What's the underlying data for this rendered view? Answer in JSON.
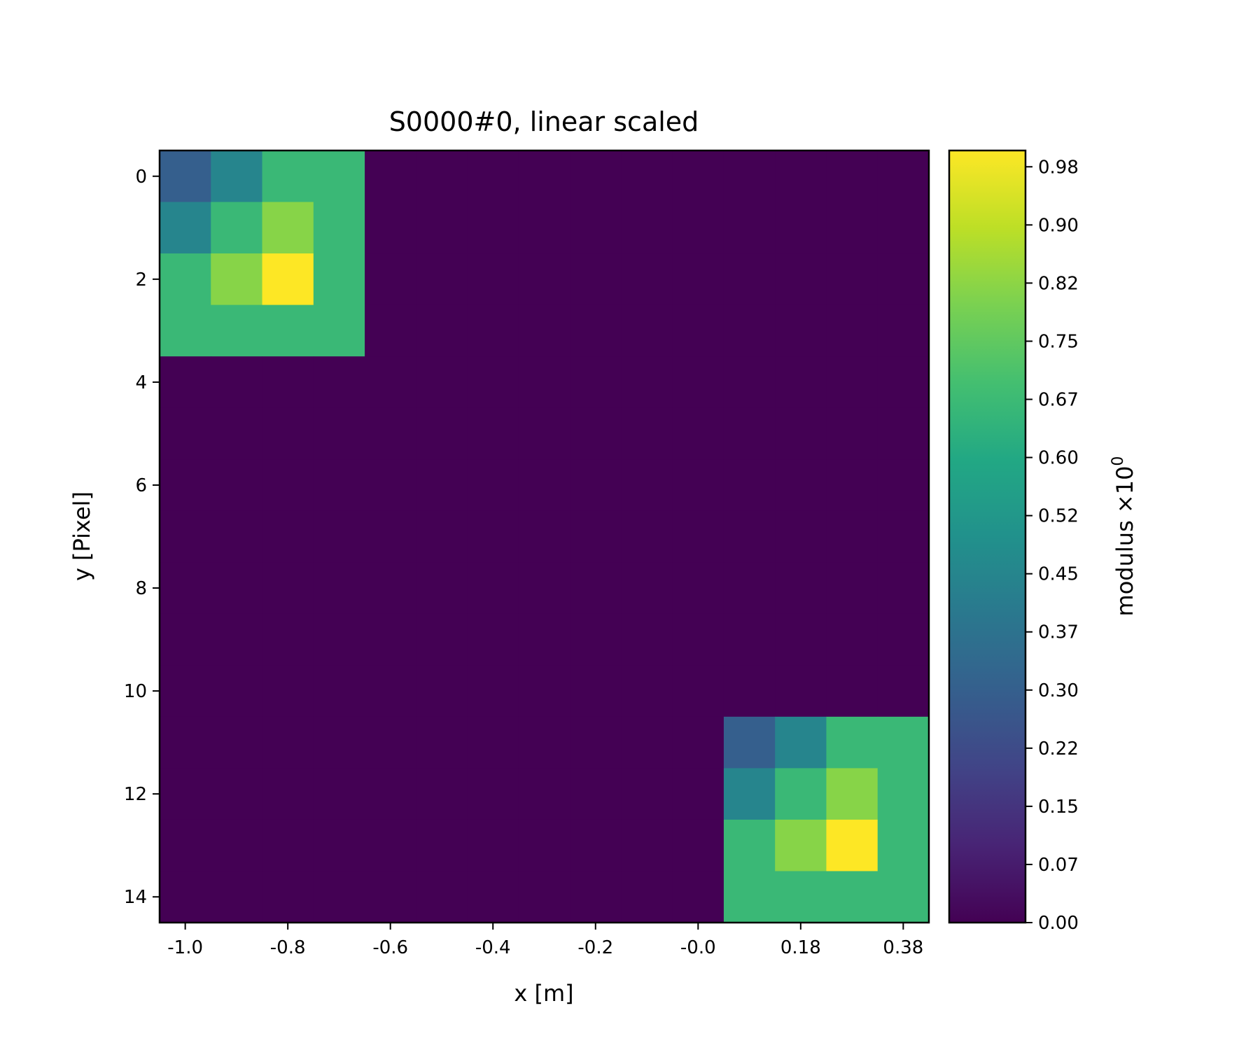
{
  "chart_data": {
    "type": "heatmap",
    "title": "S0000#0, linear scaled",
    "xlabel": "x [m]",
    "ylabel": "y [Pixel]",
    "colorbar_label": "modulus ×10",
    "colorbar_label_exponent": "0",
    "colormap": "viridis",
    "vlim": [
      0,
      1.0
    ],
    "rows": 15,
    "cols": 15,
    "background_value": 0,
    "blocks": [
      {
        "row_start": 0,
        "col_start": 0,
        "values": [
          [
            0.3,
            0.45,
            0.67,
            0.67
          ],
          [
            0.45,
            0.67,
            0.82,
            0.67
          ],
          [
            0.67,
            0.82,
            1.0,
            0.67
          ],
          [
            0.67,
            0.67,
            0.67,
            0.67
          ]
        ]
      },
      {
        "row_start": 11,
        "col_start": 11,
        "values": [
          [
            0.3,
            0.45,
            0.67,
            0.67
          ],
          [
            0.45,
            0.67,
            0.82,
            0.67
          ],
          [
            0.67,
            0.82,
            1.0,
            0.67
          ],
          [
            0.67,
            0.67,
            0.67,
            0.67
          ]
        ]
      }
    ],
    "x_ticks": [
      {
        "col": 0,
        "label": "-1.0"
      },
      {
        "col": 2,
        "label": "-0.8"
      },
      {
        "col": 4,
        "label": "-0.6"
      },
      {
        "col": 6,
        "label": "-0.4"
      },
      {
        "col": 8,
        "label": "-0.2"
      },
      {
        "col": 10,
        "label": "-0.0"
      },
      {
        "col": 12,
        "label": "0.18"
      },
      {
        "col": 14,
        "label": "0.38"
      }
    ],
    "y_ticks": [
      {
        "row": 0,
        "label": "0"
      },
      {
        "row": 2,
        "label": "2"
      },
      {
        "row": 4,
        "label": "4"
      },
      {
        "row": 6,
        "label": "6"
      },
      {
        "row": 8,
        "label": "8"
      },
      {
        "row": 10,
        "label": "10"
      },
      {
        "row": 12,
        "label": "12"
      },
      {
        "row": 14,
        "label": "14"
      }
    ],
    "colorbar_tick_step": 0.0753,
    "colorbar_ticks": [
      "0.00",
      "0.07",
      "0.15",
      "0.22",
      "0.30",
      "0.37",
      "0.45",
      "0.52",
      "0.60",
      "0.67",
      "0.75",
      "0.82",
      "0.90",
      "0.98"
    ]
  }
}
